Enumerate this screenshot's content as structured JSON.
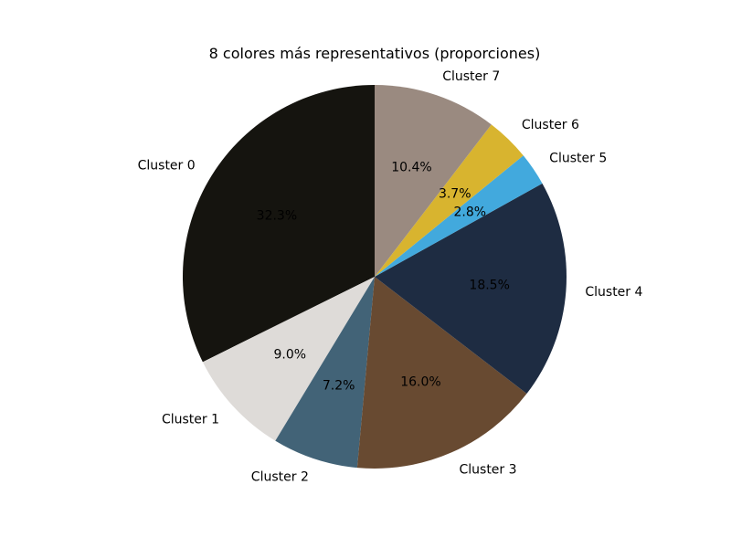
{
  "chart_data": {
    "type": "pie",
    "title": "8 colores más representativos (proporciones)",
    "start_angle_deg": 90,
    "direction": "counterclockwise",
    "slices": [
      {
        "label": "Cluster 0",
        "value": 32.3,
        "pct_label": "32.3%",
        "color": "#15140f"
      },
      {
        "label": "Cluster 1",
        "value": 9.0,
        "pct_label": "9.0%",
        "color": "#dedbd8"
      },
      {
        "label": "Cluster 2",
        "value": 7.2,
        "pct_label": "7.2%",
        "color": "#426377"
      },
      {
        "label": "Cluster 3",
        "value": 16.0,
        "pct_label": "16.0%",
        "color": "#684a31"
      },
      {
        "label": "Cluster 4",
        "value": 18.5,
        "pct_label": "18.5%",
        "color": "#1e2c42"
      },
      {
        "label": "Cluster 5",
        "value": 2.8,
        "pct_label": "2.8%",
        "color": "#42a9dd"
      },
      {
        "label": "Cluster 6",
        "value": 3.7,
        "pct_label": "3.7%",
        "color": "#d8b42f"
      },
      {
        "label": "Cluster 7",
        "value": 10.4,
        "pct_label": "10.4%",
        "color": "#9a8a80"
      }
    ]
  }
}
